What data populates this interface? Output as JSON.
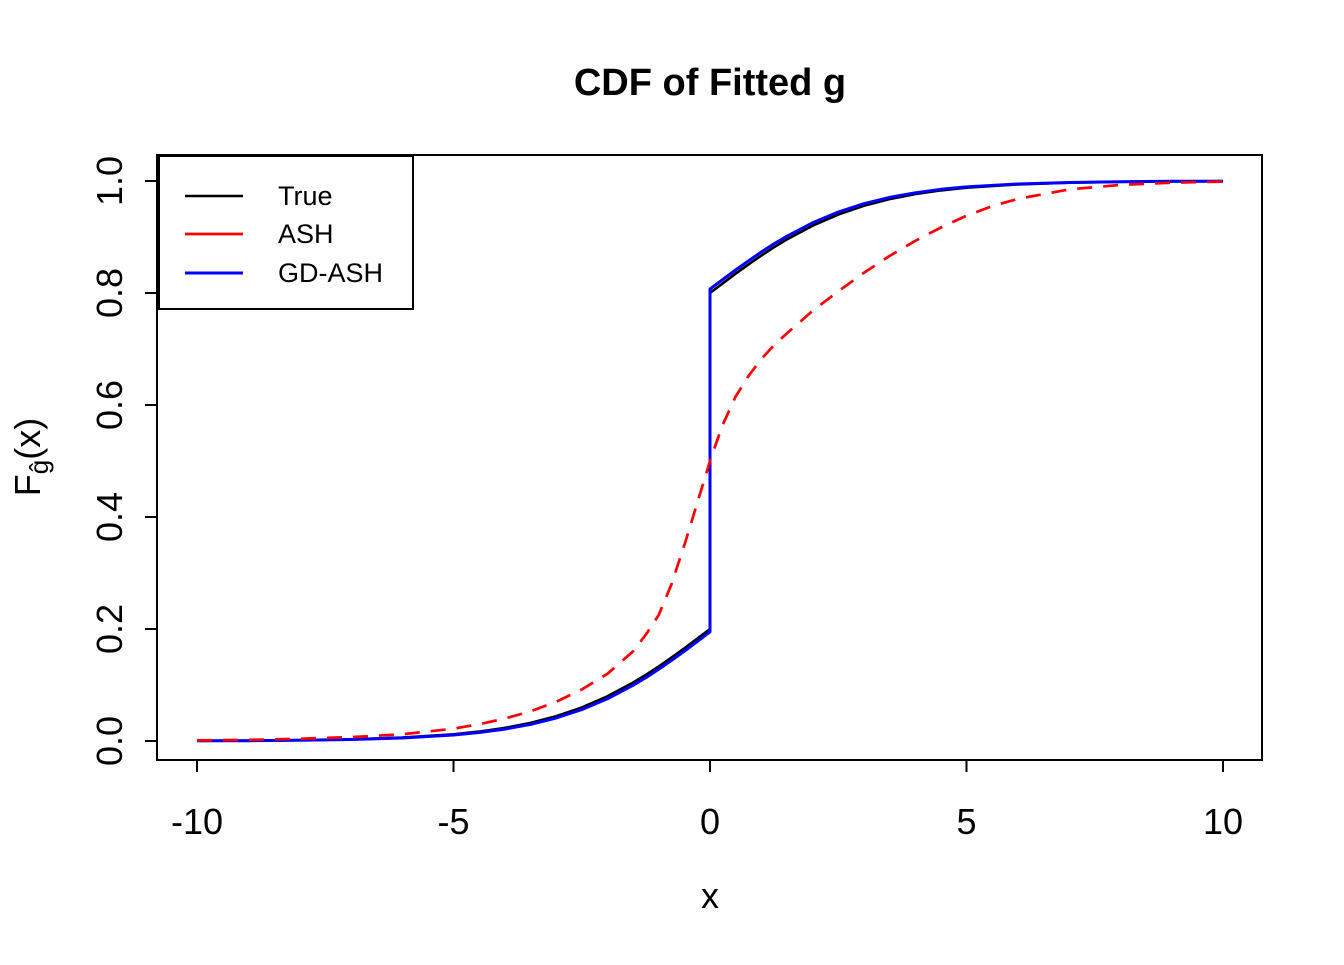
{
  "chart_data": {
    "type": "line",
    "title": "CDF of Fitted g",
    "xlabel": "x",
    "ylabel": "F_ĝ(x)",
    "ylabel_parts": {
      "main": "F",
      "sub": "ĝ",
      "rest": "(x)"
    },
    "xlim": [
      -10.8,
      10.8
    ],
    "ylim": [
      -0.04,
      1.04
    ],
    "grid": "off",
    "legend_position": "topleft",
    "x_axis": {
      "tick_values": [
        -10,
        -5,
        0,
        5,
        10
      ],
      "tick_labels": [
        "-10",
        "-5",
        "0",
        "5",
        "10"
      ]
    },
    "y_axis": {
      "tick_values": [
        0.0,
        0.2,
        0.4,
        0.6,
        0.8,
        1.0
      ],
      "tick_labels": [
        "0.0",
        "0.2",
        "0.4",
        "0.6",
        "0.8",
        "1.0"
      ]
    },
    "series": [
      {
        "name": "True",
        "color": "#000000",
        "style": "solid",
        "width": 2.6,
        "points": [
          [
            -10,
            0.0004
          ],
          [
            -9,
            0.0008
          ],
          [
            -8,
            0.0015
          ],
          [
            -7,
            0.0031
          ],
          [
            -6,
            0.0061
          ],
          [
            -5,
            0.012
          ],
          [
            -4.5,
            0.0168
          ],
          [
            -4,
            0.0234
          ],
          [
            -3.5,
            0.0323
          ],
          [
            -3,
            0.0443
          ],
          [
            -2.5,
            0.0599
          ],
          [
            -2,
            0.0798
          ],
          [
            -1.5,
            0.1043
          ],
          [
            -1.25,
            0.1183
          ],
          [
            -1,
            0.1332
          ],
          [
            -0.75,
            0.149
          ],
          [
            -0.5,
            0.1656
          ],
          [
            -0.25,
            0.1827
          ],
          [
            0,
            0.2
          ],
          [
            0,
            0.8
          ],
          [
            0.25,
            0.8173
          ],
          [
            0.5,
            0.8344
          ],
          [
            0.75,
            0.851
          ],
          [
            1,
            0.8668
          ],
          [
            1.25,
            0.8817
          ],
          [
            1.5,
            0.8957
          ],
          [
            2,
            0.9202
          ],
          [
            2.5,
            0.9401
          ],
          [
            3,
            0.9557
          ],
          [
            3.5,
            0.9677
          ],
          [
            4,
            0.9766
          ],
          [
            4.5,
            0.9832
          ],
          [
            5,
            0.988
          ],
          [
            6,
            0.9939
          ],
          [
            7,
            0.9969
          ],
          [
            8,
            0.9985
          ],
          [
            9,
            0.9992
          ],
          [
            10,
            0.9996
          ]
        ]
      },
      {
        "name": "ASH",
        "color": "#ff0000",
        "style": "dashed",
        "width": 2.7,
        "points": [
          [
            -10,
            0.001
          ],
          [
            -9,
            0.002
          ],
          [
            -8,
            0.004
          ],
          [
            -7,
            0.007
          ],
          [
            -6,
            0.012
          ],
          [
            -5,
            0.022
          ],
          [
            -4.5,
            0.03
          ],
          [
            -4,
            0.04
          ],
          [
            -3.5,
            0.053
          ],
          [
            -3,
            0.07
          ],
          [
            -2.5,
            0.092
          ],
          [
            -2,
            0.12
          ],
          [
            -1.5,
            0.16
          ],
          [
            -1.25,
            0.19
          ],
          [
            -1,
            0.225
          ],
          [
            -0.75,
            0.28
          ],
          [
            -0.625,
            0.315
          ],
          [
            -0.5,
            0.35
          ],
          [
            -0.375,
            0.387
          ],
          [
            -0.25,
            0.425
          ],
          [
            -0.125,
            0.462
          ],
          [
            0,
            0.5
          ],
          [
            0.125,
            0.533
          ],
          [
            0.25,
            0.565
          ],
          [
            0.5,
            0.615
          ],
          [
            0.75,
            0.652
          ],
          [
            1,
            0.682
          ],
          [
            1.25,
            0.707
          ],
          [
            1.5,
            0.728
          ],
          [
            2,
            0.768
          ],
          [
            2.5,
            0.803
          ],
          [
            3,
            0.836
          ],
          [
            3.5,
            0.866
          ],
          [
            4,
            0.893
          ],
          [
            4.5,
            0.917
          ],
          [
            5,
            0.938
          ],
          [
            5.5,
            0.955
          ],
          [
            6,
            0.968
          ],
          [
            7,
            0.985
          ],
          [
            8,
            0.993
          ],
          [
            9,
            0.997
          ],
          [
            10,
            0.999
          ]
        ]
      },
      {
        "name": "GD-ASH",
        "color": "#0000ff",
        "style": "solid",
        "width": 3,
        "points": [
          [
            -10,
            0.0003
          ],
          [
            -9,
            0.0006
          ],
          [
            -8,
            0.0013
          ],
          [
            -7,
            0.0026
          ],
          [
            -6,
            0.0053
          ],
          [
            -5,
            0.0107
          ],
          [
            -4.5,
            0.0151
          ],
          [
            -4,
            0.0212
          ],
          [
            -3.5,
            0.0296
          ],
          [
            -3,
            0.041
          ],
          [
            -2.5,
            0.056
          ],
          [
            -2,
            0.0754
          ],
          [
            -1.5,
            0.0995
          ],
          [
            -1.25,
            0.1133
          ],
          [
            -1,
            0.1282
          ],
          [
            -0.75,
            0.144
          ],
          [
            -0.5,
            0.1606
          ],
          [
            -0.25,
            0.1776
          ],
          [
            0,
            0.195
          ],
          [
            0,
            0.807
          ],
          [
            0.25,
            0.8242
          ],
          [
            0.5,
            0.8411
          ],
          [
            0.75,
            0.8575
          ],
          [
            1,
            0.8732
          ],
          [
            1.25,
            0.8879
          ],
          [
            1.5,
            0.9015
          ],
          [
            2,
            0.9254
          ],
          [
            2.5,
            0.9446
          ],
          [
            3,
            0.9595
          ],
          [
            3.5,
            0.9707
          ],
          [
            4,
            0.979
          ],
          [
            4.5,
            0.9851
          ],
          [
            5,
            0.9894
          ],
          [
            6,
            0.9947
          ],
          [
            7,
            0.9974
          ],
          [
            8,
            0.9987
          ],
          [
            9,
            0.9994
          ],
          [
            10,
            0.9997
          ]
        ]
      }
    ],
    "draw_order": [
      0,
      2,
      1
    ],
    "legend_entries": [
      {
        "label": "True"
      },
      {
        "label": "ASH"
      },
      {
        "label": "GD-ASH"
      }
    ]
  }
}
